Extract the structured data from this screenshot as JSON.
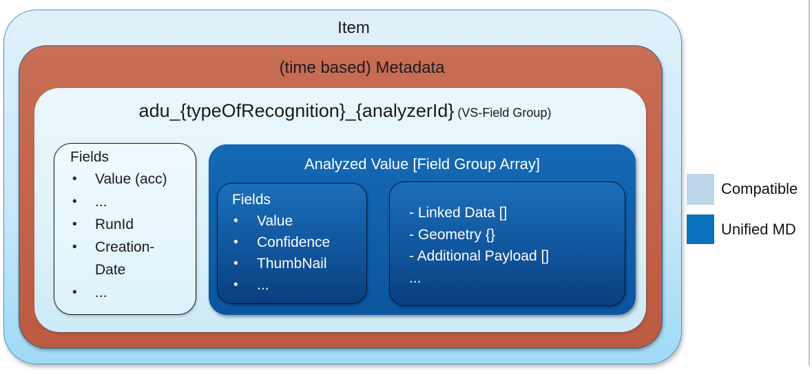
{
  "item": {
    "title": "Item"
  },
  "metadata": {
    "title": "(time based) Metadata"
  },
  "adu": {
    "title": "adu_{typeOfRecognition}_{analyzerId}",
    "subtitle": " (VS-Field Group)"
  },
  "fields_box": {
    "title": "Fields",
    "items": [
      "Value (acc)",
      "...",
      "RunId",
      "Creation-Date",
      "..."
    ]
  },
  "analyzed": {
    "title": "Analyzed Value [Field Group Array]",
    "fields_box": {
      "title": "Fields",
      "items": [
        "Value",
        "Confidence",
        "ThumbNail",
        "..."
      ]
    },
    "details_box": {
      "lines": [
        "- Linked Data []",
        "- Geometry {}",
        "- Additional Payload []",
        "..."
      ]
    }
  },
  "legend": {
    "items": [
      {
        "label": "Compatible",
        "color": "#BDD7EA"
      },
      {
        "label": "Unified MD",
        "color": "#0B72BC"
      }
    ]
  },
  "glyphs": {
    "bullet": "•"
  },
  "colors": {
    "item_box_top": "#E0F0FA",
    "item_box_bottom": "#9FDAF6",
    "item_box_border": "#4E91C9",
    "metadata_box": "#C2634B",
    "adu_box": "#E7F4FB",
    "analyzed_box_top": "#1469B5",
    "analyzed_box_bottom": "#0C55A0",
    "inner_box_top": "#1B6EBA",
    "inner_box_bottom": "#0A3F7E",
    "text_dark": "#1A1A1A",
    "text_light": "#FFFFFF"
  }
}
